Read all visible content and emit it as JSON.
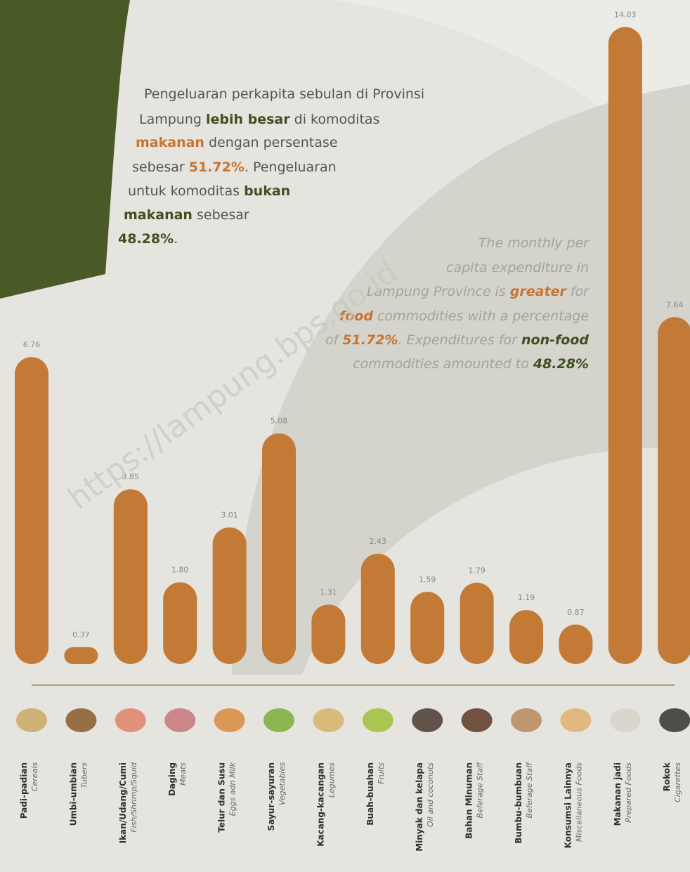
{
  "chart_data": {
    "type": "bar",
    "categories": [
      "Padi-padian",
      "Umbi-umbian",
      "Ikan/Udang/Cumi",
      "Daging",
      "Telur dan Susu",
      "Sayur-sayuran",
      "Kacang-kacangan",
      "Buah-buahan",
      "Minyak dan kelapa",
      "Bahan Minuman",
      "Bumbu-bumbuan",
      "Konsumsi Lainnya",
      "Makanan jadi",
      "Rokok"
    ],
    "category_translations": [
      "Cereals",
      "Tubers",
      "Fish/Shrimp/Squid",
      "Meats",
      "Eggs adn Milk",
      "Vegetables",
      "Legumes",
      "Fruits",
      "Oil and coconuts",
      "Beferage Staff",
      "Beferage Staff",
      "Miscellaneous Foods",
      "Prepared Foods",
      "Cigarettes"
    ],
    "values": [
      6.76,
      0.37,
      3.85,
      1.8,
      3.01,
      5.08,
      1.31,
      2.43,
      1.59,
      1.79,
      1.19,
      0.87,
      14.03,
      7.64
    ],
    "value_labels": [
      "6.76",
      "0.37",
      "3.85",
      "1.80",
      "3.01",
      "5.08",
      "1.31",
      "2.43",
      "1.59",
      "1.79",
      "1.19",
      "0.87",
      "14.03",
      "7.64"
    ],
    "color": "#c27a36",
    "ylim": [
      0,
      14.5
    ],
    "watermark": "https://lampung.bps.go.id",
    "annotation_id": [
      [
        {
          "text": "Pengeluaran perkapita sebulan di Provinsi"
        }
      ],
      [
        {
          "text": "Lampung "
        },
        {
          "text": "lebih besar",
          "emphasis": "green"
        },
        {
          "text": " di komoditas"
        }
      ],
      [
        {
          "text": "makanan",
          "emphasis": "orange"
        },
        {
          "text": " dengan persentase"
        }
      ],
      [
        {
          "text": "sebesar "
        },
        {
          "text": "51.72%",
          "emphasis": "orange"
        },
        {
          "text": ". Pengeluaran"
        }
      ],
      [
        {
          "text": "untuk komoditas "
        },
        {
          "text": "bukan",
          "emphasis": "green"
        }
      ],
      [
        {
          "text": "makanan",
          "emphasis": "green"
        },
        {
          "text": " sebesar"
        }
      ],
      [
        {
          "text": "48.28%",
          "emphasis": "green"
        },
        {
          "text": "."
        }
      ]
    ],
    "annotation_en": [
      [
        {
          "text": "The monthly per"
        }
      ],
      [
        {
          "text": "capita expenditure in"
        }
      ],
      [
        {
          "text": "Lampung Province is "
        },
        {
          "text": "greater",
          "emphasis": "orange"
        },
        {
          "text": " for"
        }
      ],
      [
        {
          "text": "food",
          "emphasis": "orange"
        },
        {
          "text": " commodities with a percentage"
        }
      ],
      [
        {
          "text": "of "
        },
        {
          "text": "51.72%",
          "emphasis": "orange"
        },
        {
          "text": ". Expenditures for "
        },
        {
          "text": "non-food",
          "emphasis": "green"
        }
      ],
      [
        {
          "text": "commodities amounted to "
        },
        {
          "text": "48.28%",
          "emphasis": "green"
        }
      ]
    ]
  }
}
